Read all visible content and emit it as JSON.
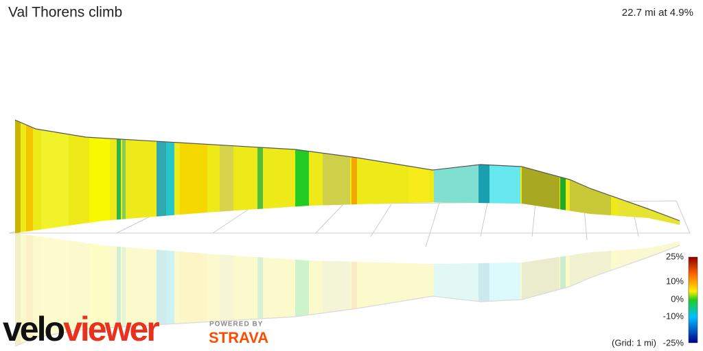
{
  "header": {
    "title": "Val Thorens climb",
    "summary": "22.7 mi at 4.9%"
  },
  "legend": {
    "ticks": [
      "25%",
      "10%",
      "0%",
      "-10%",
      "-25%"
    ],
    "grid_note": "(Grid: 1 mi)"
  },
  "branding": {
    "logo_left": "velo",
    "logo_right": "viewer",
    "powered_by": "POWERED BY",
    "partner": "STRAVA"
  }
}
